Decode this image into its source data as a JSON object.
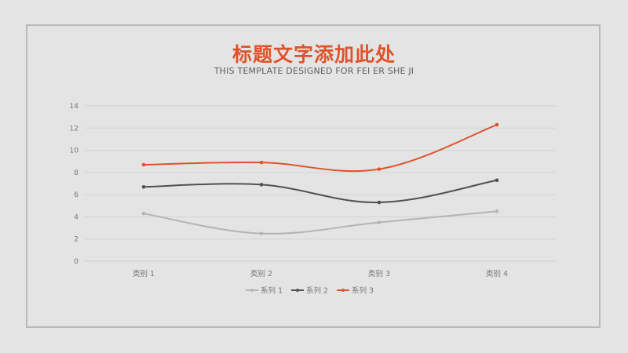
{
  "header": {
    "title": "标题文字添加此处",
    "subtitle": "THIS TEMPLATE DESIGNED FOR FEI ER SHE JI"
  },
  "chart_data": {
    "type": "line",
    "title": "",
    "xlabel": "",
    "ylabel": "",
    "categories": [
      "类别 1",
      "类别 2",
      "类别 3",
      "类别 4"
    ],
    "ylim": [
      0,
      14
    ],
    "yticks": [
      0,
      2,
      4,
      6,
      8,
      10,
      12,
      14
    ],
    "grid": true,
    "smooth": true,
    "legend": "bottom",
    "series": [
      {
        "name": "系列 1",
        "color": "#b4b4b4",
        "values": [
          4.3,
          2.5,
          3.5,
          4.5
        ]
      },
      {
        "name": "系列 2",
        "color": "#505050",
        "values": [
          6.7,
          6.9,
          5.3,
          7.3
        ]
      },
      {
        "name": "系列 3",
        "color": "#e0532a",
        "values": [
          8.7,
          8.9,
          8.3,
          12.3
        ]
      }
    ]
  }
}
